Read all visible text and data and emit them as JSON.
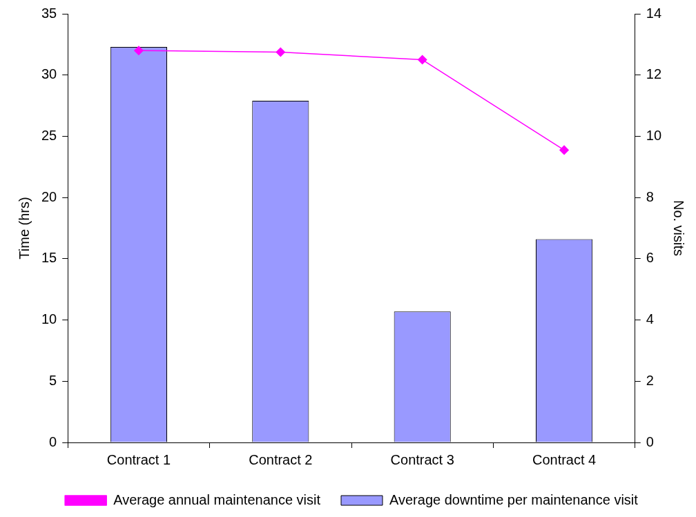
{
  "chart_data": {
    "type": "bar",
    "ylabel": "Time (hrs)",
    "y2label": "No. visits",
    "categories": [
      "Contract 1",
      "Contract 2",
      "Contract 3",
      "Contract 4"
    ],
    "series": [
      {
        "name": "Average downtime per maintenance visit",
        "color": "#9999ff",
        "values": [
          32.3,
          27.9,
          10.7,
          16.6
        ]
      },
      {
        "name": "Average annual maintenance visit",
        "type": "line",
        "axis": "y2",
        "color": "#ff00ff",
        "marker": "diamond",
        "values": [
          12.8,
          12.75,
          12.5,
          9.55
        ]
      }
    ],
    "ylim": [
      0,
      35
    ],
    "yticks": [
      0,
      5,
      10,
      15,
      20,
      25,
      30,
      35
    ],
    "y2lim": [
      0,
      14
    ],
    "y2ticks": [
      0,
      2,
      4,
      6,
      8,
      10,
      12,
      14
    ],
    "grid": false,
    "legend": "bottom"
  }
}
